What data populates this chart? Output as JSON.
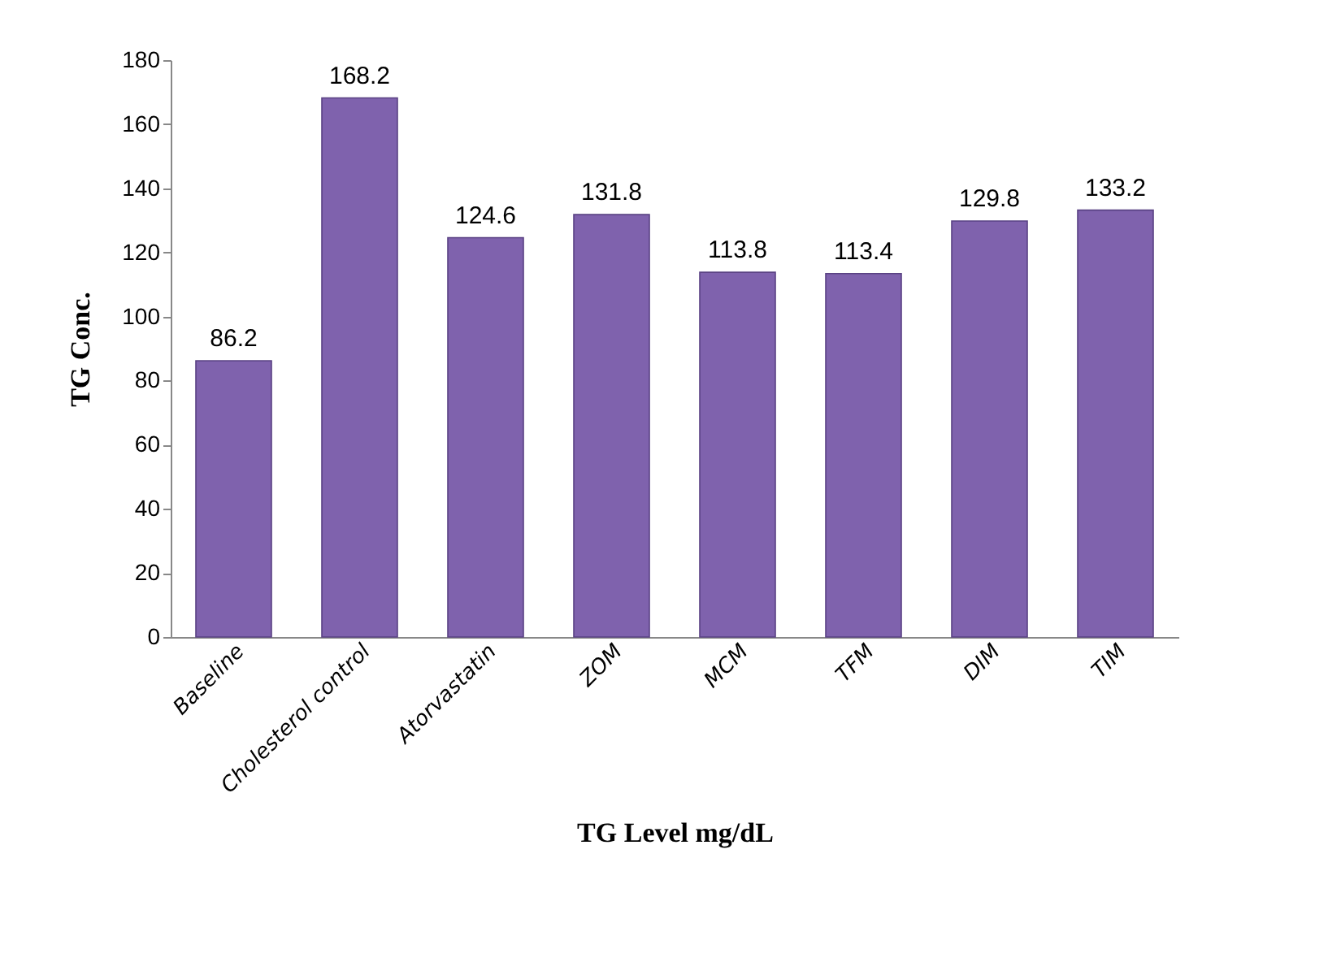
{
  "chart_data": {
    "type": "bar",
    "xlabel": "TG Level mg/dL",
    "ylabel": "TG  Conc.",
    "categories": [
      "Baseline",
      "Cholesterol control",
      "Atorvastatin",
      "ZOM",
      "MCM",
      "TFM",
      "DIM",
      "TIM"
    ],
    "values": [
      86.2,
      168.2,
      124.6,
      131.8,
      113.8,
      113.4,
      129.8,
      133.2
    ],
    "color": "#7f62ad",
    "ylim": [
      0,
      180
    ],
    "yticks": [
      0,
      20,
      40,
      60,
      80,
      100,
      120,
      140,
      160,
      180
    ],
    "data_labels": true,
    "grid": false
  }
}
